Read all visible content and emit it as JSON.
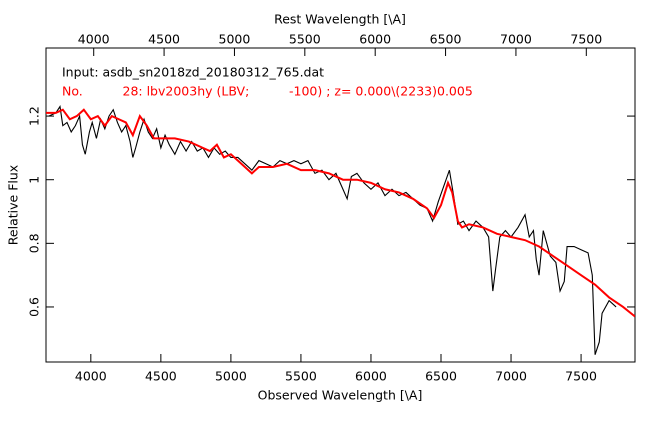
{
  "chart_data": {
    "type": "line",
    "xlabel": "Observed Wavelength [\\A]",
    "x2label": "Rest Wavelength [\\A]",
    "ylabel": "Relative Flux",
    "annotations": [
      {
        "text": "Input: asdb_sn2018zd_20180312_765.dat",
        "color": "#000000"
      },
      {
        "text": "No.          28: lbv2003hy (LBV;          -100) ; z= 0.000\\(2233)0.005",
        "color": "#ff0000"
      }
    ],
    "xlim": [
      3680,
      7885
    ],
    "xticks": [
      4000,
      4500,
      5000,
      5500,
      6000,
      6500,
      7000,
      7500
    ],
    "x2lim": [
      3661,
      7846
    ],
    "x2ticks": [
      4000,
      4500,
      5000,
      5500,
      6000,
      6500,
      7000,
      7500
    ],
    "ylim": [
      0.427,
      1.414
    ],
    "yticks": [
      0.6,
      0.8,
      1,
      1.2
    ],
    "series": [
      {
        "color": "#000000",
        "x": [
          3700,
          3750,
          3780,
          3800,
          3830,
          3860,
          3890,
          3920,
          3940,
          3960,
          3990,
          4010,
          4040,
          4070,
          4100,
          4130,
          4160,
          4190,
          4220,
          4250,
          4280,
          4300,
          4320,
          4350,
          4380,
          4410,
          4440,
          4470,
          4500,
          4530,
          4560,
          4600,
          4640,
          4680,
          4720,
          4760,
          4800,
          4840,
          4880,
          4920,
          4960,
          5000,
          5050,
          5100,
          5150,
          5200,
          5250,
          5300,
          5350,
          5400,
          5450,
          5500,
          5550,
          5600,
          5650,
          5700,
          5750,
          5800,
          5830,
          5860,
          5900,
          5950,
          6000,
          6050,
          6100,
          6150,
          6200,
          6250,
          6300,
          6350,
          6400,
          6440,
          6480,
          6520,
          6560,
          6590,
          6620,
          6660,
          6700,
          6750,
          6800,
          6840,
          6870,
          6890,
          6920,
          6960,
          7000,
          7050,
          7100,
          7130,
          7160,
          7180,
          7200,
          7230,
          7280,
          7320,
          7350,
          7380,
          7400,
          7450,
          7500,
          7550,
          7580,
          7600,
          7630,
          7650,
          7700,
          7750
        ],
        "values": [
          1.2,
          1.21,
          1.23,
          1.17,
          1.18,
          1.15,
          1.17,
          1.2,
          1.11,
          1.08,
          1.15,
          1.18,
          1.13,
          1.19,
          1.16,
          1.2,
          1.22,
          1.18,
          1.15,
          1.17,
          1.12,
          1.07,
          1.1,
          1.15,
          1.19,
          1.15,
          1.13,
          1.16,
          1.1,
          1.14,
          1.11,
          1.08,
          1.12,
          1.09,
          1.12,
          1.09,
          1.1,
          1.07,
          1.1,
          1.08,
          1.09,
          1.07,
          1.07,
          1.05,
          1.03,
          1.06,
          1.05,
          1.04,
          1.06,
          1.05,
          1.06,
          1.05,
          1.06,
          1.02,
          1.03,
          1.0,
          1.02,
          0.97,
          0.94,
          1.01,
          1.02,
          0.99,
          0.97,
          0.99,
          0.95,
          0.97,
          0.95,
          0.96,
          0.94,
          0.92,
          0.91,
          0.87,
          0.93,
          0.98,
          1.03,
          0.95,
          0.86,
          0.87,
          0.84,
          0.87,
          0.85,
          0.82,
          0.65,
          0.72,
          0.82,
          0.84,
          0.82,
          0.85,
          0.89,
          0.82,
          0.84,
          0.75,
          0.7,
          0.84,
          0.76,
          0.74,
          0.65,
          0.68,
          0.79,
          0.79,
          0.78,
          0.77,
          0.7,
          0.45,
          0.49,
          0.58,
          0.62,
          0.6
        ]
      },
      {
        "color": "#ff0000",
        "x": [
          3680,
          3750,
          3800,
          3850,
          3900,
          3950,
          4000,
          4050,
          4100,
          4150,
          4200,
          4250,
          4300,
          4350,
          4400,
          4450,
          4500,
          4600,
          4700,
          4800,
          4850,
          4900,
          4950,
          5000,
          5050,
          5100,
          5150,
          5200,
          5300,
          5400,
          5500,
          5600,
          5700,
          5800,
          5900,
          6000,
          6100,
          6200,
          6300,
          6400,
          6450,
          6500,
          6550,
          6580,
          6620,
          6650,
          6700,
          6800,
          6900,
          7000,
          7100,
          7200,
          7300,
          7400,
          7500,
          7600,
          7700,
          7800,
          7885
        ],
        "values": [
          1.21,
          1.21,
          1.22,
          1.19,
          1.2,
          1.22,
          1.19,
          1.2,
          1.17,
          1.2,
          1.19,
          1.18,
          1.14,
          1.2,
          1.17,
          1.13,
          1.13,
          1.13,
          1.12,
          1.1,
          1.09,
          1.11,
          1.07,
          1.08,
          1.06,
          1.04,
          1.02,
          1.04,
          1.04,
          1.05,
          1.03,
          1.03,
          1.02,
          1.0,
          1.0,
          0.99,
          0.97,
          0.96,
          0.94,
          0.91,
          0.88,
          0.92,
          0.99,
          0.96,
          0.87,
          0.85,
          0.86,
          0.85,
          0.83,
          0.82,
          0.81,
          0.79,
          0.76,
          0.73,
          0.7,
          0.67,
          0.63,
          0.6,
          0.57
        ]
      }
    ]
  }
}
